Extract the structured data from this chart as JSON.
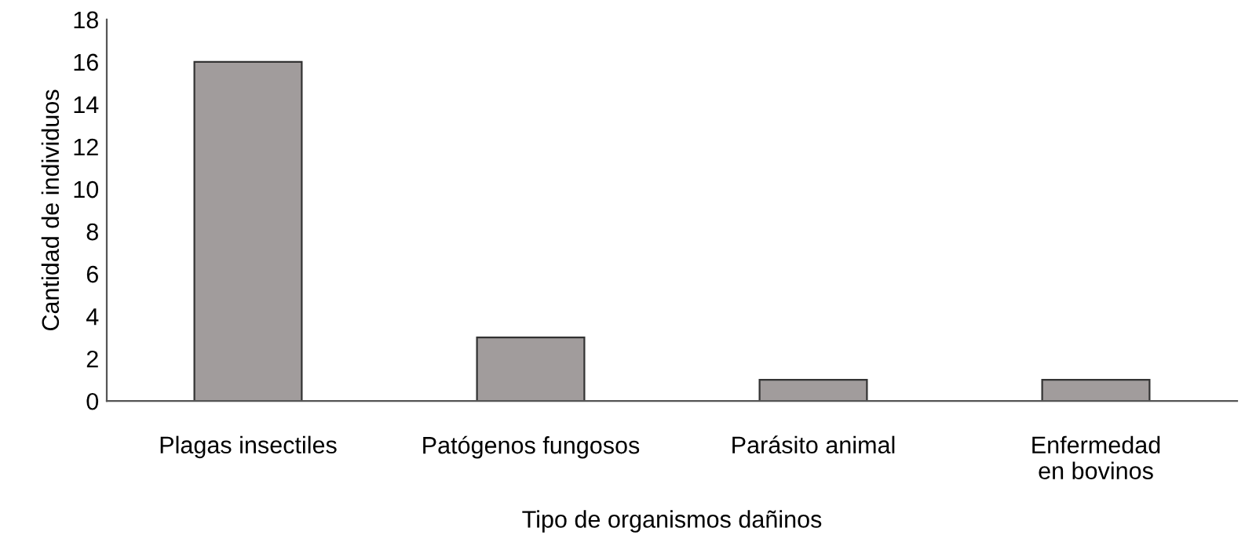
{
  "chart_data": {
    "type": "bar",
    "xlabel": "Tipo de organismos dañinos",
    "ylabel": "Cantidad de individuos",
    "categories": [
      "Plagas insectiles",
      "Patógenos fungosos",
      "Parásito animal",
      "Enfermedad\nen bovinos"
    ],
    "values": [
      16,
      3,
      1,
      1
    ],
    "color": "#a19c9c",
    "ylim": [
      0,
      18
    ],
    "yticks": [
      0,
      2,
      4,
      6,
      8,
      10,
      12,
      14,
      16,
      18
    ],
    "grid": false,
    "legend": false
  }
}
